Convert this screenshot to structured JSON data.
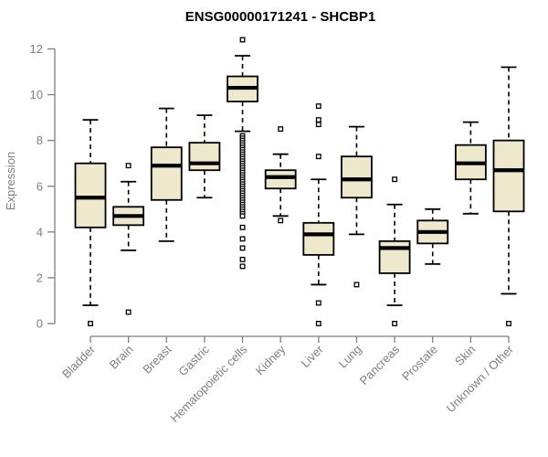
{
  "chart_data": {
    "type": "boxplot",
    "title": "ENSG00000171241 - SHCBP1",
    "ylabel": "Expression",
    "xlabel": "",
    "ylim": [
      0,
      12
    ],
    "yticks": [
      0,
      2,
      4,
      6,
      8,
      10,
      12
    ],
    "grid": false,
    "legend": "none",
    "colors": {
      "box_fill": "#EEE8CD",
      "box_stroke": "#000000",
      "median": "#000000",
      "axis": "#7f7f7f",
      "tick_text": "#7f7f7f",
      "title_text": "#000000",
      "background": "#ffffff"
    },
    "categories": [
      "Bladder",
      "Brain",
      "Breast",
      "Gastric",
      "Hematopoietic cells",
      "Kidney",
      "Liver",
      "Lung",
      "Pancreas",
      "Prostate",
      "Skin",
      "Unknown / Other"
    ],
    "boxes": [
      {
        "category": "Bladder",
        "whisker_low": 0.8,
        "q1": 4.2,
        "median": 5.5,
        "q3": 7.0,
        "whisker_high": 8.9,
        "outliers": [
          0.0
        ]
      },
      {
        "category": "Brain",
        "whisker_low": 3.2,
        "q1": 4.3,
        "median": 4.7,
        "q3": 5.1,
        "whisker_high": 6.2,
        "outliers": [
          6.9,
          0.5
        ]
      },
      {
        "category": "Breast",
        "whisker_low": 3.6,
        "q1": 5.4,
        "median": 6.9,
        "q3": 7.7,
        "whisker_high": 9.4,
        "outliers": []
      },
      {
        "category": "Gastric",
        "whisker_low": 5.5,
        "q1": 6.7,
        "median": 7.0,
        "q3": 7.9,
        "whisker_high": 9.1,
        "outliers": []
      },
      {
        "category": "Hematopoietic cells",
        "whisker_low": 8.4,
        "q1": 9.7,
        "median": 10.3,
        "q3": 10.8,
        "whisker_high": 11.7,
        "outliers": [
          12.4,
          4.2,
          3.7,
          3.3,
          2.8,
          2.5
        ],
        "outlier_band": [
          4.7,
          8.2
        ]
      },
      {
        "category": "Kidney",
        "whisker_low": 4.7,
        "q1": 5.9,
        "median": 6.4,
        "q3": 6.7,
        "whisker_high": 7.4,
        "outliers": [
          8.5,
          4.5
        ]
      },
      {
        "category": "Liver",
        "whisker_low": 1.7,
        "q1": 3.0,
        "median": 3.9,
        "q3": 4.4,
        "whisker_high": 6.3,
        "outliers": [
          9.5,
          8.9,
          8.7,
          7.3,
          0.9,
          0.0
        ]
      },
      {
        "category": "Lung",
        "whisker_low": 3.9,
        "q1": 5.5,
        "median": 6.3,
        "q3": 7.3,
        "whisker_high": 8.6,
        "outliers": [
          1.7
        ]
      },
      {
        "category": "Pancreas",
        "whisker_low": 0.8,
        "q1": 2.2,
        "median": 3.3,
        "q3": 3.6,
        "whisker_high": 5.2,
        "outliers": [
          6.3,
          0.0
        ]
      },
      {
        "category": "Prostate",
        "whisker_low": 2.6,
        "q1": 3.5,
        "median": 4.0,
        "q3": 4.5,
        "whisker_high": 5.0,
        "outliers": []
      },
      {
        "category": "Skin",
        "whisker_low": 4.8,
        "q1": 6.3,
        "median": 7.0,
        "q3": 7.8,
        "whisker_high": 8.8,
        "outliers": []
      },
      {
        "category": "Unknown / Other",
        "whisker_low": 1.3,
        "q1": 4.9,
        "median": 6.7,
        "q3": 8.0,
        "whisker_high": 11.2,
        "outliers": [
          0.0
        ]
      }
    ]
  }
}
